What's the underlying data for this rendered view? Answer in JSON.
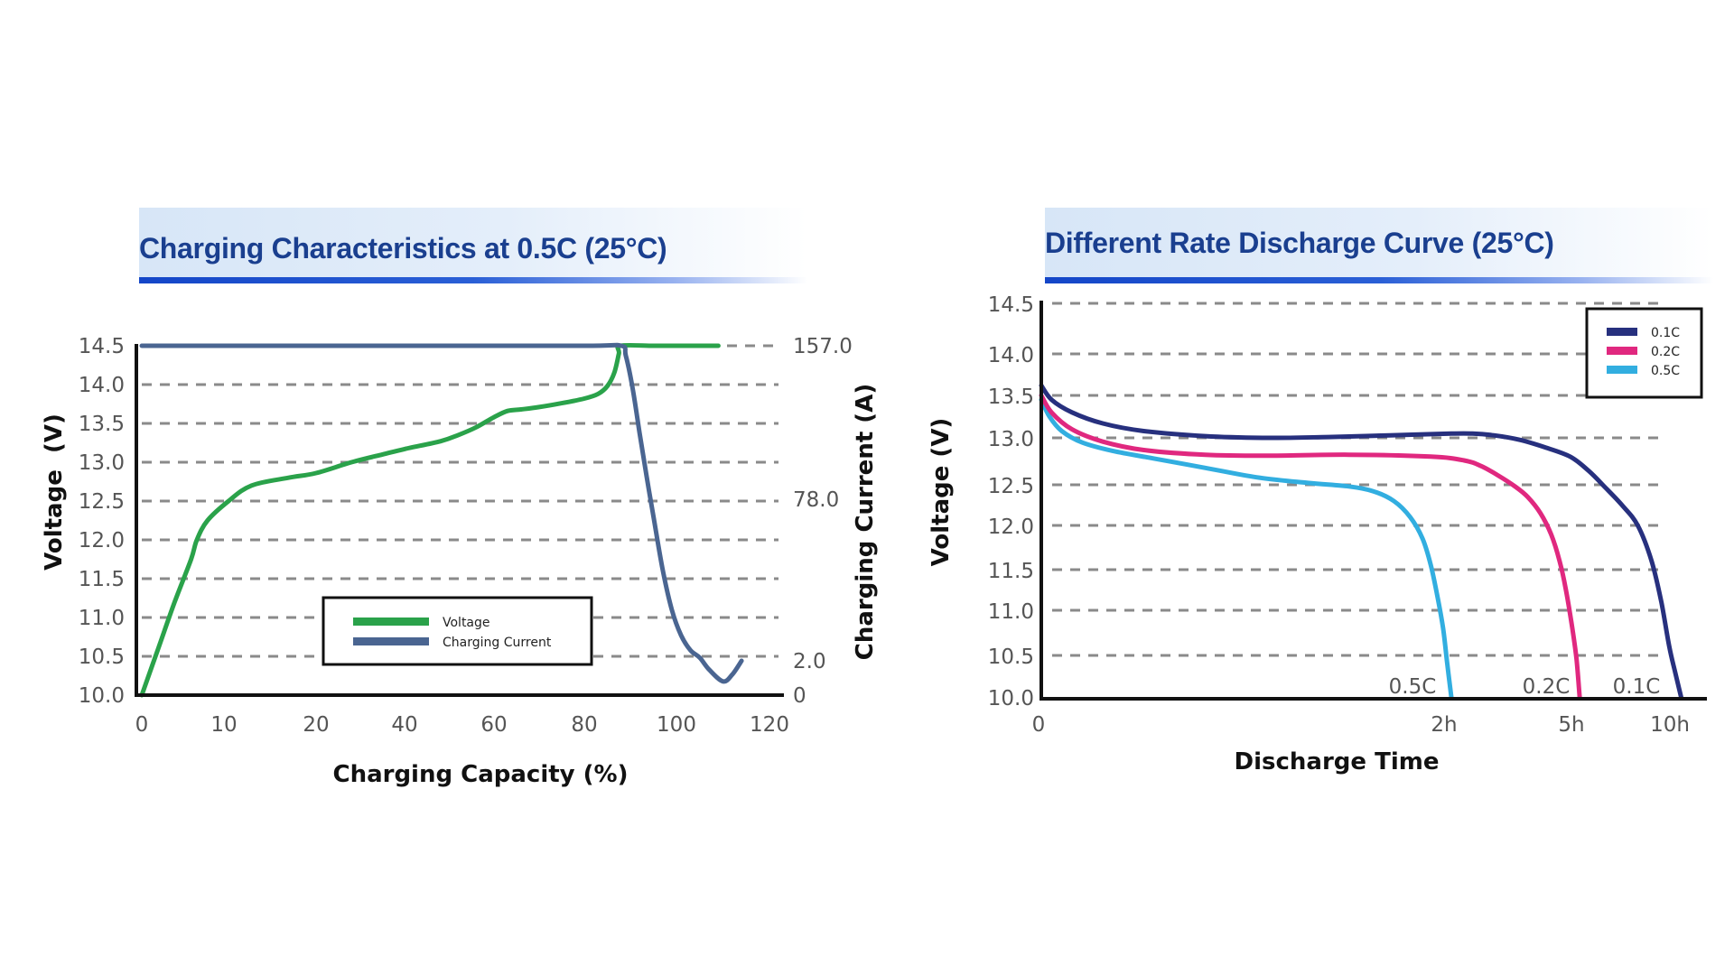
{
  "chart_data": [
    {
      "type": "line",
      "title": "Charging Characteristics at 0.5C (25°C)",
      "xlabel": "Charging Capacity (%)",
      "ylabel": "Voltage  (V)",
      "y2label": "Charging Current (A)",
      "x_ticks": [
        "0",
        "10",
        "20",
        "40",
        "60",
        "80",
        "100",
        "120"
      ],
      "x_tick_values": [
        0,
        10,
        20,
        40,
        60,
        80,
        100,
        120
      ],
      "y_ticks": [
        "14.5",
        "14.0",
        "13.5",
        "13.0",
        "12.5",
        "12.0",
        "11.5",
        "11.0",
        "10.5",
        "10.0"
      ],
      "y_tick_values": [
        14.5,
        14.0,
        13.5,
        13.0,
        12.5,
        12.0,
        11.5,
        11.0,
        10.5,
        10.0
      ],
      "y2_ticks": [
        "157.0",
        "78.0",
        "2.0",
        "0"
      ],
      "y2_tick_values": [
        157,
        78,
        2,
        0
      ],
      "ylim": [
        10.0,
        14.5
      ],
      "y2lim": [
        0,
        157
      ],
      "grid": true,
      "legend_position": "bottom-center",
      "series": [
        {
          "name": "Voltage",
          "axis": "left",
          "color": "#2aa24a",
          "x": [
            0,
            2,
            4,
            6,
            6.7,
            8,
            10.5,
            13,
            17,
            20,
            28,
            35,
            40,
            48,
            52,
            56,
            60,
            63,
            66,
            70,
            75,
            80,
            83,
            85,
            86.5,
            87.5,
            87.8,
            95,
            100,
            105,
            109
          ],
          "y": [
            10.0,
            10.6,
            11.2,
            11.75,
            12.0,
            12.25,
            12.5,
            12.7,
            12.8,
            12.86,
            13.0,
            13.1,
            13.17,
            13.27,
            13.35,
            13.45,
            13.58,
            13.66,
            13.68,
            13.71,
            13.76,
            13.82,
            13.88,
            13.98,
            14.15,
            14.4,
            14.5,
            14.5,
            14.5,
            14.5,
            14.5
          ]
        },
        {
          "name": "Charging Current",
          "axis": "right",
          "color": "#4a6591",
          "x": [
            0,
            40,
            80,
            88,
            89,
            90.5,
            92,
            93.5,
            95,
            97,
            99,
            101,
            103,
            105,
            107,
            110,
            112,
            114
          ],
          "y": [
            157,
            157,
            157,
            157,
            152,
            135,
            112,
            90,
            70,
            45,
            26,
            14,
            7,
            3.5,
            1.5,
            0.8,
            1.2,
            2.0
          ]
        }
      ]
    },
    {
      "type": "line",
      "title": "Different Rate Discharge Curve (25°C)",
      "xlabel": "Discharge Time",
      "ylabel": "Voltage (V)",
      "x_ticks": [
        "0",
        "2h",
        "5h",
        "10h"
      ],
      "x_tick_values": [
        0,
        2,
        5,
        10
      ],
      "y_ticks": [
        "14.5",
        "14.0",
        "13.5",
        "13.0",
        "12.5",
        "12.0",
        "11.5",
        "11.0",
        "10.5",
        "10.0"
      ],
      "y_tick_values": [
        14.5,
        14.0,
        13.5,
        13.0,
        12.5,
        12.0,
        11.5,
        11.0,
        10.5,
        10.0
      ],
      "ylim": [
        10.0,
        14.5
      ],
      "grid": true,
      "legend_position": "top-right",
      "annotations": [
        "0.5C",
        "0.2C",
        "0.1C"
      ],
      "series": [
        {
          "name": "0.1C",
          "color": "#27307e",
          "x": [
            0,
            0.05,
            0.15,
            0.3,
            0.5,
            0.8,
            1.1,
            1.4,
            1.7,
            2.0,
            2.5,
            3.0,
            3.6,
            4.2,
            4.8,
            5.5,
            6.3,
            7.2,
            8.0,
            8.7,
            9.2,
            9.6,
            9.9,
            10.2
          ],
          "y": [
            13.62,
            13.45,
            13.3,
            13.17,
            13.08,
            13.02,
            13.0,
            13.01,
            13.03,
            13.05,
            13.05,
            13.03,
            12.98,
            12.9,
            12.8,
            12.65,
            12.48,
            12.25,
            12.0,
            11.6,
            11.1,
            10.6,
            10.3,
            10.0
          ]
        },
        {
          "name": "0.2C",
          "color": "#e0287f",
          "x": [
            0,
            0.05,
            0.15,
            0.3,
            0.5,
            0.8,
            1.1,
            1.5,
            1.9,
            2.3,
            2.7,
            3.1,
            3.5,
            3.8,
            4.1,
            4.35,
            4.55,
            4.7,
            4.85,
            4.95,
            5.05
          ],
          "y": [
            13.5,
            13.3,
            13.1,
            12.96,
            12.87,
            12.82,
            12.81,
            12.82,
            12.8,
            12.76,
            12.7,
            12.6,
            12.48,
            12.35,
            12.15,
            11.9,
            11.6,
            11.25,
            10.8,
            10.45,
            10.0
          ]
        },
        {
          "name": "0.5C",
          "color": "#32aee0",
          "x": [
            0,
            0.04,
            0.1,
            0.2,
            0.35,
            0.55,
            0.8,
            1.05,
            1.3,
            1.5,
            1.62,
            1.72,
            1.8,
            1.86,
            1.9,
            1.93,
            1.96,
            1.98,
            2.0
          ],
          "y": [
            13.45,
            13.25,
            13.08,
            12.95,
            12.86,
            12.78,
            12.68,
            12.58,
            12.52,
            12.48,
            12.42,
            12.3,
            12.1,
            11.85,
            11.55,
            11.2,
            10.8,
            10.4,
            10.0
          ]
        }
      ]
    }
  ]
}
